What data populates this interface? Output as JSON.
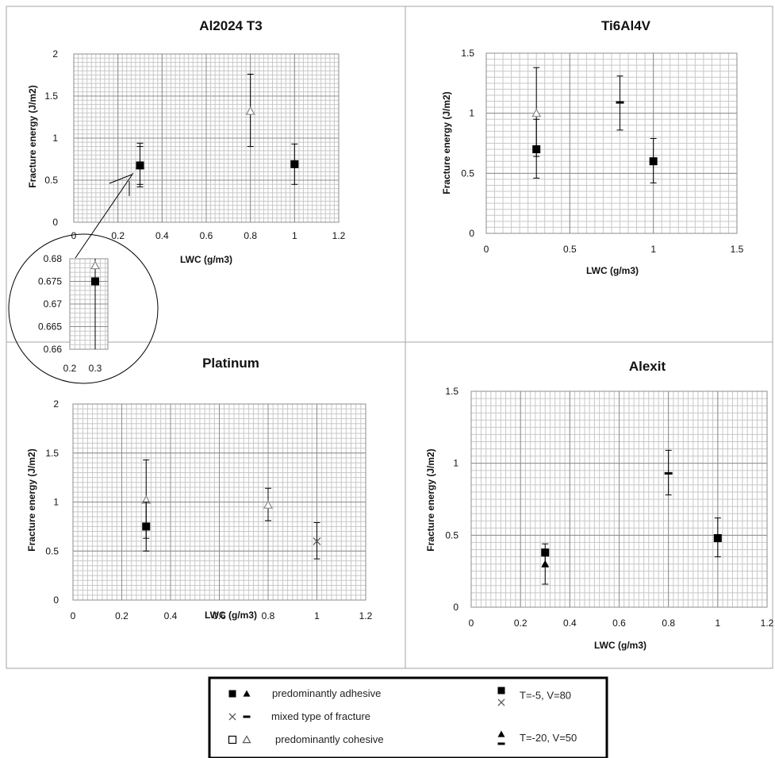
{
  "chart_data": [
    {
      "type": "scatter",
      "title": "Al2024 T3",
      "xlabel": "LWC (g/m3)",
      "ylabel": "Fracture energy (J/m2)",
      "xlim": [
        0,
        1.2
      ],
      "ylim": [
        0,
        2
      ],
      "xticks": [
        "0",
        "0.2",
        "0.4",
        "0.6",
        "0.8",
        "1",
        "1.2"
      ],
      "yticks": [
        "0",
        "0.5",
        "1",
        "1.5",
        "2"
      ],
      "grid": true,
      "points": [
        {
          "x": 0.3,
          "y": 0.68,
          "err_low": 0.42,
          "err_high": 0.94,
          "marker": "open-triangle",
          "color": "#888888"
        },
        {
          "x": 0.3,
          "y": 0.675,
          "err_low": 0.45,
          "err_high": 0.9,
          "marker": "filled-square",
          "color": "#000000"
        },
        {
          "x": 0.8,
          "y": 1.32,
          "err_low": 0.9,
          "err_high": 1.76,
          "marker": "open-triangle",
          "color": "#888888"
        },
        {
          "x": 1.0,
          "y": 0.69,
          "err_low": 0.45,
          "err_high": 0.93,
          "marker": "filled-square",
          "color": "#000000"
        }
      ]
    },
    {
      "type": "scatter",
      "title": "Ti6Al4V",
      "xlabel": "LWC (g/m3)",
      "ylabel": "Fracture energy (J/m2)",
      "xlim": [
        0,
        1.5
      ],
      "ylim": [
        0,
        1.5
      ],
      "xticks": [
        "0",
        "0.5",
        "1",
        "1.5"
      ],
      "yticks": [
        "0",
        "0.5",
        "1",
        "1.5"
      ],
      "grid": true,
      "points": [
        {
          "x": 0.3,
          "y": 1.0,
          "err_low": 0.64,
          "err_high": 1.38,
          "marker": "open-triangle",
          "color": "#888888"
        },
        {
          "x": 0.3,
          "y": 0.7,
          "err_low": 0.46,
          "err_high": 0.95,
          "marker": "filled-square",
          "color": "#000000"
        },
        {
          "x": 0.8,
          "y": 1.09,
          "err_low": 0.86,
          "err_high": 1.31,
          "marker": "dash",
          "color": "#000000"
        },
        {
          "x": 1.0,
          "y": 0.6,
          "err_low": 0.42,
          "err_high": 0.79,
          "marker": "filled-square",
          "color": "#000000"
        }
      ]
    },
    {
      "type": "scatter",
      "title": "Platinum",
      "xlabel": "LWC (g/m3)",
      "ylabel": "Fracture energy (J/m2)",
      "xlim": [
        0,
        1.2
      ],
      "ylim": [
        0,
        2
      ],
      "xticks": [
        "0",
        "0.2",
        "0.4",
        "0.6",
        "0.8",
        "1",
        "1.2"
      ],
      "yticks": [
        "0",
        "0.5",
        "1",
        "1.5",
        "2"
      ],
      "grid": true,
      "points": [
        {
          "x": 0.3,
          "y": 1.02,
          "err_low": 0.63,
          "err_high": 1.43,
          "marker": "open-triangle",
          "color": "#888888"
        },
        {
          "x": 0.3,
          "y": 0.75,
          "err_low": 0.5,
          "err_high": 1.0,
          "marker": "filled-square",
          "color": "#000000"
        },
        {
          "x": 0.8,
          "y": 0.97,
          "err_low": 0.81,
          "err_high": 1.14,
          "marker": "open-triangle",
          "color": "#888888"
        },
        {
          "x": 1.0,
          "y": 0.6,
          "err_low": 0.42,
          "err_high": 0.79,
          "marker": "cross",
          "color": "#555555"
        }
      ]
    },
    {
      "type": "scatter",
      "title": "Alexit",
      "xlabel": "LWC (g/m3)",
      "ylabel": "Fracture energy (J/m2)",
      "xlim": [
        0,
        1.2
      ],
      "ylim": [
        0,
        1.5
      ],
      "xticks": [
        "0",
        "0.2",
        "0.4",
        "0.6",
        "0.8",
        "1",
        "1.2"
      ],
      "yticks": [
        "0",
        "0.5",
        "1",
        "1.5"
      ],
      "grid": true,
      "points": [
        {
          "x": 0.3,
          "y": 0.38,
          "err_low": 0.28,
          "err_high": 0.44,
          "marker": "filled-square",
          "color": "#000000"
        },
        {
          "x": 0.3,
          "y": 0.3,
          "err_low": 0.16,
          "err_high": 0.38,
          "marker": "filled-triangle",
          "color": "#000000"
        },
        {
          "x": 0.8,
          "y": 0.93,
          "err_low": 0.78,
          "err_high": 1.09,
          "marker": "dash",
          "color": "#000000"
        },
        {
          "x": 1.0,
          "y": 0.48,
          "err_low": 0.35,
          "err_high": 0.62,
          "marker": "filled-square",
          "color": "#000000"
        }
      ]
    },
    {
      "type": "scatter",
      "title": "",
      "xlabel": "",
      "ylabel": "",
      "xlim": [
        0.2,
        0.35
      ],
      "ylim": [
        0.66,
        0.68
      ],
      "xticks": [
        "0.2",
        "0.3"
      ],
      "yticks": [
        "0.66",
        "0.665",
        "0.67",
        "0.675",
        "0.68"
      ],
      "grid": true,
      "points": [
        {
          "x": 0.3,
          "y": 0.6785,
          "marker": "open-triangle",
          "color": "#888888"
        },
        {
          "x": 0.3,
          "y": 0.675,
          "marker": "filled-square",
          "color": "#000000"
        }
      ]
    }
  ],
  "legend": {
    "rows": [
      {
        "markers": [
          "filled-square",
          "filled-triangle"
        ],
        "label": "predominantly adhesive"
      },
      {
        "markers": [
          "cross",
          "dash"
        ],
        "label": "mixed type of fracture"
      },
      {
        "markers": [
          "open-square",
          "open-triangle"
        ],
        "label": "predominantly cohesive"
      }
    ],
    "conditions": [
      {
        "markers": [
          "filled-square",
          "cross"
        ],
        "label": "T=-5, V=80"
      },
      {
        "markers": [
          "filled-triangle",
          "dash"
        ],
        "label": "T=-20, V=50"
      }
    ]
  }
}
